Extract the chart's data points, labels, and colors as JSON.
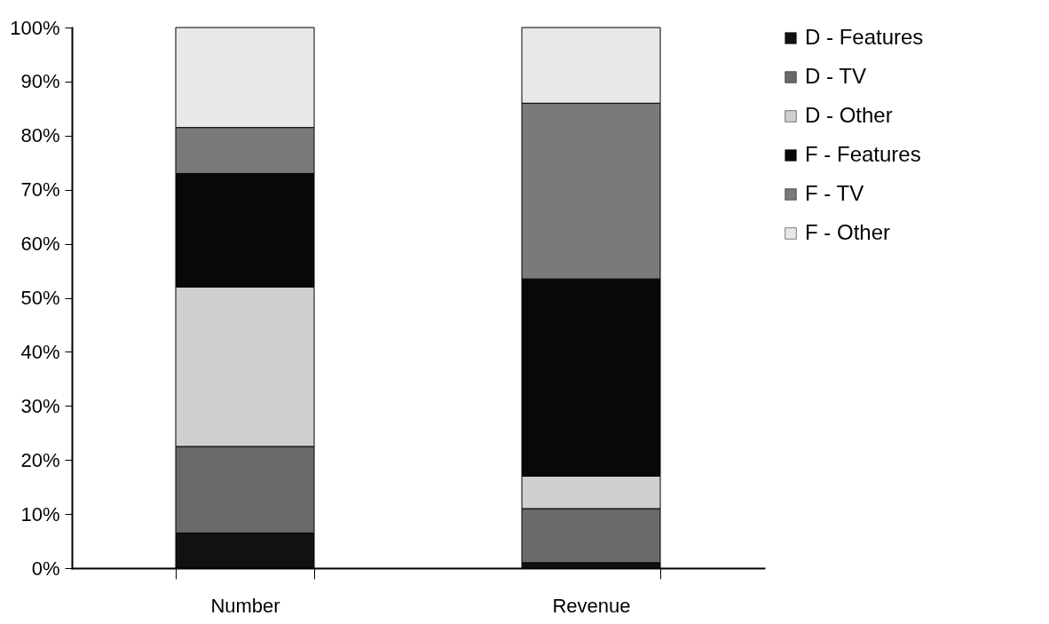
{
  "chart_data": {
    "type": "bar",
    "stacked": true,
    "categories": [
      "Number",
      "Revenue"
    ],
    "series": [
      {
        "name": "D - Features",
        "color": "#111111",
        "values": [
          6.5,
          1
        ]
      },
      {
        "name": "D - TV",
        "color": "#6a6a6a",
        "values": [
          16,
          10
        ]
      },
      {
        "name": "D - Other",
        "color": "#cfcfcf",
        "values": [
          29.5,
          6
        ]
      },
      {
        "name": "F - Features",
        "color": "#080808",
        "values": [
          21,
          36.5
        ]
      },
      {
        "name": "F - TV",
        "color": "#7a7a7a",
        "values": [
          8.5,
          32.5
        ]
      },
      {
        "name": "F - Other",
        "color": "#e8e8e8",
        "values": [
          18.5,
          14
        ]
      }
    ],
    "ylim": [
      0,
      100
    ],
    "yticks": [
      {
        "value": 0,
        "label": "0%"
      },
      {
        "value": 10,
        "label": "10%"
      },
      {
        "value": 20,
        "label": "20%"
      },
      {
        "value": 30,
        "label": "30%"
      },
      {
        "value": 40,
        "label": "40%"
      },
      {
        "value": 50,
        "label": "50%"
      },
      {
        "value": 60,
        "label": "60%"
      },
      {
        "value": 70,
        "label": "70%"
      },
      {
        "value": 80,
        "label": "80%"
      },
      {
        "value": 90,
        "label": "90%"
      },
      {
        "value": 100,
        "label": "100%"
      }
    ],
    "grid": false,
    "legend": "right"
  }
}
